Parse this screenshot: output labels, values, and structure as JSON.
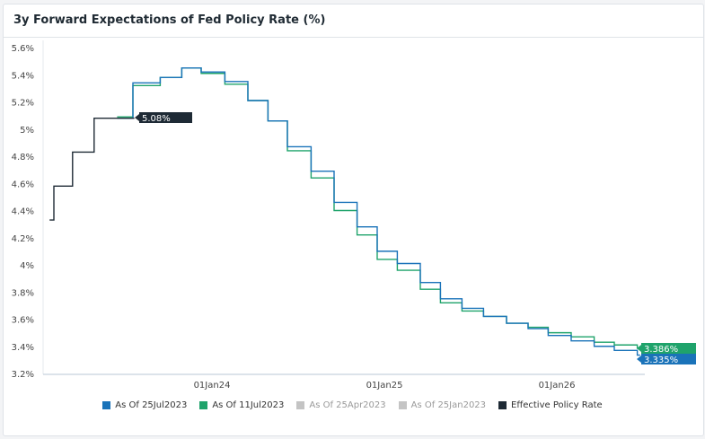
{
  "chart_data": {
    "type": "line",
    "title": "3y Forward Expectations of Fed Policy Rate (%)",
    "x_unit": "months since 01Jan2023",
    "xlim": [
      0,
      43
    ],
    "ylim": [
      3.2,
      5.6
    ],
    "y_ticks": [
      "3.2%",
      "3.4%",
      "3.6%",
      "3.8%",
      "4%",
      "4.2%",
      "4.4%",
      "4.6%",
      "4.8%",
      "5%",
      "5.2%",
      "5.4%",
      "5.6%"
    ],
    "y_tick_values": [
      3.2,
      3.4,
      3.6,
      3.8,
      4.0,
      4.2,
      4.4,
      4.6,
      4.8,
      5.0,
      5.2,
      5.4,
      5.6
    ],
    "x_ticks": [
      {
        "label": "01Jan24",
        "x": 12
      },
      {
        "label": "01Jan25",
        "x": 24
      },
      {
        "label": "01Jan26",
        "x": 36
      }
    ],
    "series": [
      {
        "name": "Effective Policy Rate",
        "color": "#1e2a35",
        "visible": true,
        "steps": [
          [
            0.7,
            4.33
          ],
          [
            1.0,
            4.58
          ],
          [
            2.3,
            4.83
          ],
          [
            3.8,
            5.08
          ],
          [
            6.6,
            5.08
          ]
        ],
        "end_label": "5.08%"
      },
      {
        "name": "As Of 11Jul2023",
        "color": "#1fa36b",
        "visible": true,
        "steps": [
          [
            5.4,
            5.09
          ],
          [
            6.5,
            5.32
          ],
          [
            8.4,
            5.38
          ],
          [
            9.9,
            5.45
          ],
          [
            11.25,
            5.41
          ],
          [
            12.9,
            5.33
          ],
          [
            14.5,
            5.21
          ],
          [
            15.9,
            5.06
          ],
          [
            17.25,
            4.84
          ],
          [
            18.9,
            4.64
          ],
          [
            20.5,
            4.4
          ],
          [
            22.1,
            4.22
          ],
          [
            23.5,
            4.04
          ],
          [
            24.9,
            3.96
          ],
          [
            26.5,
            3.82
          ],
          [
            27.9,
            3.72
          ],
          [
            29.4,
            3.66
          ],
          [
            30.9,
            3.62
          ],
          [
            32.5,
            3.57
          ],
          [
            34,
            3.54
          ],
          [
            35.4,
            3.5
          ],
          [
            37,
            3.47
          ],
          [
            38.6,
            3.43
          ],
          [
            40,
            3.41
          ],
          [
            41.6,
            3.386
          ],
          [
            41.8,
            3.386
          ]
        ],
        "end_label": "3.386%"
      },
      {
        "name": "As Of 25Jul2023",
        "color": "#1a73b9",
        "visible": true,
        "steps": [
          [
            5.4,
            5.08
          ],
          [
            6.5,
            5.34
          ],
          [
            8.4,
            5.38
          ],
          [
            9.9,
            5.45
          ],
          [
            11.25,
            5.42
          ],
          [
            12.9,
            5.35
          ],
          [
            14.5,
            5.21
          ],
          [
            15.9,
            5.06
          ],
          [
            17.25,
            4.87
          ],
          [
            18.9,
            4.69
          ],
          [
            20.5,
            4.46
          ],
          [
            22.1,
            4.28
          ],
          [
            23.5,
            4.1
          ],
          [
            24.9,
            4.01
          ],
          [
            26.5,
            3.87
          ],
          [
            27.9,
            3.75
          ],
          [
            29.4,
            3.68
          ],
          [
            30.9,
            3.62
          ],
          [
            32.5,
            3.57
          ],
          [
            34,
            3.53
          ],
          [
            35.4,
            3.48
          ],
          [
            37,
            3.44
          ],
          [
            38.6,
            3.4
          ],
          [
            40,
            3.37
          ],
          [
            41.6,
            3.335
          ],
          [
            41.8,
            3.335
          ]
        ],
        "end_label": "3.335%"
      },
      {
        "name": "As Of 25Apr2023",
        "color": "#c4c4c4",
        "visible": false,
        "steps": []
      },
      {
        "name": "As Of 25Jan2023",
        "color": "#c4c4c4",
        "visible": false,
        "steps": []
      }
    ],
    "legend": [
      "As Of 25Jul2023",
      "As Of 11Jul2023",
      "As Of 25Apr2023",
      "As Of 25Jan2023",
      "Effective Policy Rate"
    ],
    "legend_colors": [
      "#1a73b9",
      "#1fa36b",
      "#c4c4c4",
      "#c4c4c4",
      "#1e2a35"
    ],
    "legend_position": "bottom"
  }
}
